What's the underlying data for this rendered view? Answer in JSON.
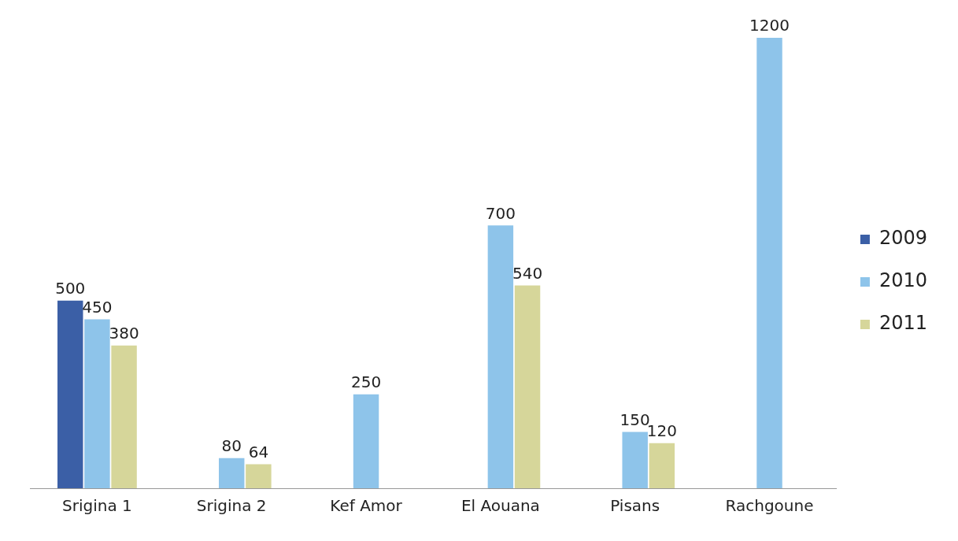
{
  "chart_data": {
    "type": "bar",
    "categories": [
      "Srigina 1",
      "Srigina 2",
      "Kef Amor",
      "El Aouana",
      "Pisans",
      "Rachgoune"
    ],
    "series": [
      {
        "name": "2009",
        "color": "#3b5fa6",
        "values": [
          500,
          null,
          null,
          null,
          null,
          null
        ]
      },
      {
        "name": "2010",
        "color": "#8ec4ea",
        "values": [
          450,
          80,
          250,
          700,
          150,
          1200
        ]
      },
      {
        "name": "2011",
        "color": "#d6d69a",
        "values": [
          380,
          64,
          null,
          540,
          120,
          null
        ]
      }
    ],
    "data_labels": true,
    "legend": "right",
    "grid": false
  }
}
